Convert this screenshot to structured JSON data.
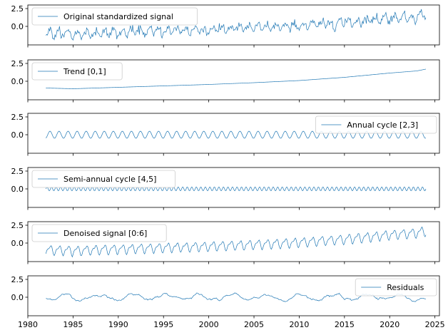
{
  "chart_data": {
    "type": "line",
    "shared_x": {
      "ticks": [
        1980,
        1985,
        1990,
        1995,
        2000,
        2005,
        2010,
        2015,
        2020,
        2025
      ],
      "tick_labels": [
        "1980",
        "1985",
        "1990",
        "1995",
        "2000",
        "2005",
        "2010",
        "2015",
        "2020",
        "2025"
      ],
      "xlim": [
        1980,
        2025.5
      ],
      "data_range": [
        1982,
        2024
      ],
      "step": 0.08333
    },
    "y_ticks": [
      0.0,
      2.5
    ],
    "y_tick_labels": [
      "0.0",
      "2.5"
    ],
    "line_color": "#1f77b4",
    "grid": false,
    "panels": [
      {
        "series": [
          {
            "name": "Original standardized signal"
          }
        ],
        "legend": "upper left",
        "ylim": [
          -2.6,
          3.0
        ],
        "components": {
          "trend": true,
          "annual_amp": 0.45,
          "semiannual_amp": 0.18,
          "noise": 0.45,
          "trend_scale": 1.0
        }
      },
      {
        "series": [
          {
            "name": "Trend [0,1]"
          }
        ],
        "legend": "upper left",
        "ylim": [
          -2.6,
          3.0
        ],
        "components": {
          "trend": true,
          "annual_amp": 0,
          "semiannual_amp": 0,
          "noise": 0,
          "trend_scale": 1.0
        }
      },
      {
        "series": [
          {
            "name": "Annual cycle [2,3]"
          }
        ],
        "legend": "upper right",
        "ylim": [
          -2.6,
          3.0
        ],
        "components": {
          "trend": false,
          "annual_amp": 0.5,
          "semiannual_amp": 0,
          "noise": 0,
          "trend_scale": 0
        }
      },
      {
        "series": [
          {
            "name": "Semi-annual cycle [4,5]"
          }
        ],
        "legend": "upper left",
        "ylim": [
          -2.6,
          3.0
        ],
        "components": {
          "trend": false,
          "annual_amp": 0,
          "semiannual_amp": 0.28,
          "noise": 0,
          "trend_scale": 0
        }
      },
      {
        "series": [
          {
            "name": "Denoised signal [0:6]"
          }
        ],
        "legend": "upper left",
        "ylim": [
          -2.6,
          3.0
        ],
        "components": {
          "trend": true,
          "annual_amp": 0.55,
          "semiannual_amp": 0.25,
          "noise": 0.05,
          "trend_scale": 1.0
        }
      },
      {
        "series": [
          {
            "name": "Residuals"
          }
        ],
        "legend": "upper right",
        "ylim": [
          -2.6,
          3.0
        ],
        "components": {
          "trend": false,
          "annual_amp": 0,
          "semiannual_amp": 0,
          "noise": 0.22,
          "trend_scale": 0,
          "slow_wave": 0.35
        }
      }
    ],
    "trend_points": {
      "x": [
        1982,
        1985,
        1990,
        1995,
        2000,
        2005,
        2010,
        2015,
        2020,
        2023,
        2024
      ],
      "y": [
        -0.95,
        -1.05,
        -0.85,
        -0.65,
        -0.45,
        -0.2,
        0.1,
        0.55,
        1.15,
        1.45,
        1.7
      ]
    }
  }
}
